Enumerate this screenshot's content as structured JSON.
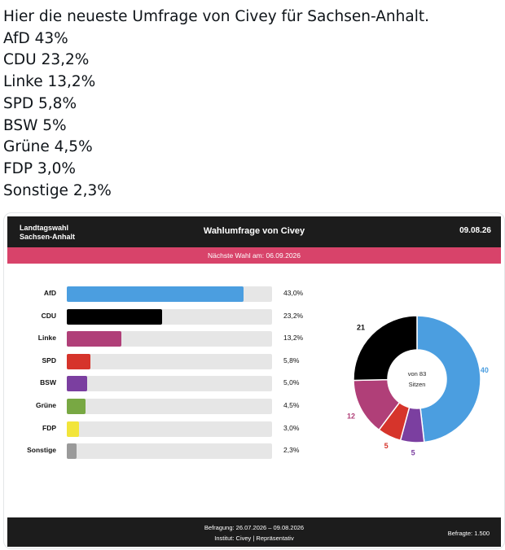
{
  "post": {
    "lines": [
      "Hier die neueste Umfrage von Civey für Sachsen-Anhalt.",
      "AfD 43%",
      "CDU 23,2%",
      "Linke 13,2%",
      "SPD 5,8%",
      "BSW 5%",
      "Grüne 4,5%",
      "FDP 3,0%",
      "Sonstige 2,3%"
    ]
  },
  "card": {
    "header_left_1": "Landtagswahl",
    "header_left_2": "Sachsen-Anhalt",
    "header_title": "Wahlumfrage von Civey",
    "header_date": "09.08.26",
    "next_election": "Nächste Wahl am: 06.09.2026",
    "footer_period": "Befragung: 26.07.2026 – 09.08.2026",
    "footer_institute": "Institut: Civey | Repräsentativ",
    "footer_respondents": "Befragte: 1.500"
  },
  "chart_data": [
    {
      "type": "bar",
      "orientation": "horizontal",
      "categories": [
        "AfD",
        "CDU",
        "Linke",
        "SPD",
        "BSW",
        "Grüne",
        "FDP",
        "Sonstige"
      ],
      "values": [
        43.0,
        23.2,
        13.2,
        5.8,
        5.0,
        4.5,
        3.0,
        2.3
      ],
      "value_labels": [
        "43,0%",
        "23,2%",
        "13,2%",
        "5,8%",
        "5,0%",
        "4,5%",
        "3,0%",
        "2,3%"
      ],
      "colors": [
        "#4b9ee0",
        "#000000",
        "#b03f78",
        "#d6342b",
        "#7b3fa0",
        "#78a843",
        "#f2e53b",
        "#9a9a9a"
      ],
      "xlim": [
        0,
        50
      ]
    },
    {
      "type": "pie",
      "style": "donut",
      "center_label_1": "von 83",
      "center_label_2": "Sitzen",
      "slices": [
        {
          "party": "AfD",
          "seats": 40,
          "color": "#4b9ee0"
        },
        {
          "party": "BSW",
          "seats": 5,
          "color": "#7b3fa0"
        },
        {
          "party": "SPD",
          "seats": 5,
          "color": "#d6342b"
        },
        {
          "party": "Linke",
          "seats": 12,
          "color": "#b03f78"
        },
        {
          "party": "CDU",
          "seats": 21,
          "color": "#000000"
        }
      ]
    }
  ]
}
